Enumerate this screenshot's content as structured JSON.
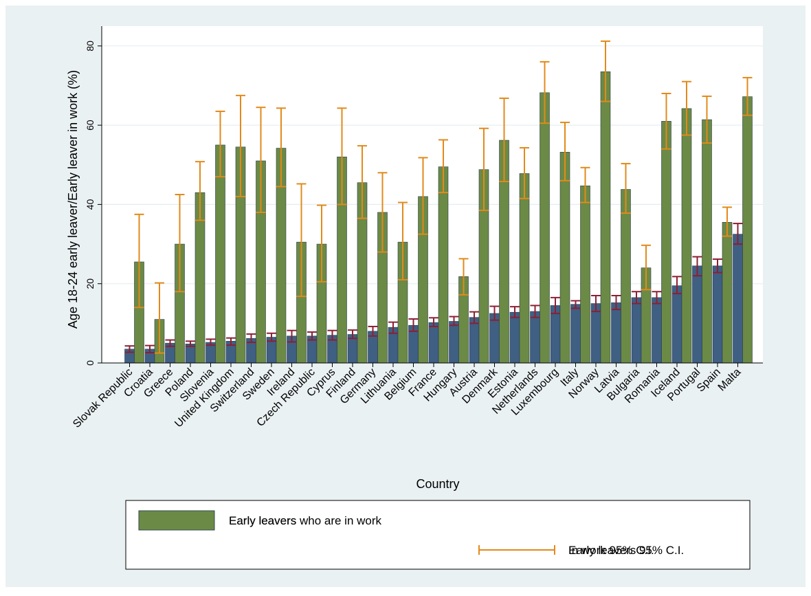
{
  "chart_data": {
    "type": "bar",
    "title": "",
    "xlabel": "Country",
    "ylabel": "Age 18-24 early leaver/Early leaver in work (%)",
    "ylim": [
      0,
      85
    ],
    "yticks": [
      0,
      20,
      40,
      60,
      80
    ],
    "grid": true,
    "legend_position": "bottom",
    "categories": [
      "Slovak Republic",
      "Croatia",
      "Greece",
      "Poland",
      "Slovenia",
      "United Kingdom",
      "Switzerland",
      "Sweden",
      "Ireland",
      "Czech Republic",
      "Cyprus",
      "Finland",
      "Germany",
      "Lithuania",
      "Belgium",
      "France",
      "Hungary",
      "Austria",
      "Denmark",
      "Estonia",
      "Netherlands",
      "Luxembourg",
      "Italy",
      "Norway",
      "Latvia",
      "Bulgaria",
      "Romania",
      "Iceland",
      "Portugal",
      "Spain",
      "Malta"
    ],
    "series": [
      {
        "name": "Early leavers",
        "color": "#3f5f83",
        "values": [
          3.5,
          3.5,
          5,
          4.8,
          5.2,
          5.5,
          6.2,
          6.5,
          6.8,
          6.8,
          7,
          7.2,
          8,
          9,
          9.5,
          10.2,
          10.5,
          11.5,
          12.5,
          12.8,
          13,
          14.5,
          14.8,
          15,
          15.2,
          16.5,
          16.5,
          19.5,
          24.5,
          24.5,
          32.5
        ],
        "ci_lower": [
          2.7,
          2.6,
          4.2,
          4.2,
          4.5,
          4.5,
          5.2,
          5.5,
          5.3,
          5.8,
          5.8,
          6.2,
          6.8,
          7.5,
          8,
          9.2,
          9.5,
          10,
          10.8,
          11.5,
          11.5,
          12.5,
          13.8,
          13,
          13.5,
          15,
          15,
          17.5,
          22,
          22.8,
          30
        ],
        "ci_upper": [
          4.3,
          4.4,
          5.8,
          5.5,
          6,
          6.3,
          7.3,
          7.5,
          8.2,
          7.8,
          8.2,
          8.3,
          9.2,
          10.3,
          11.1,
          11.4,
          11.7,
          12.9,
          14.3,
          14.2,
          14.5,
          16.5,
          15.7,
          17,
          17,
          18,
          18,
          21.8,
          26.8,
          26.2,
          35.2
        ]
      },
      {
        "name": "Early leavers who are in work",
        "color": "#6b8a45",
        "values": [
          25.5,
          11,
          30,
          43,
          55,
          54.5,
          51,
          54.2,
          30.5,
          30,
          52,
          45.5,
          38,
          30.5,
          42,
          49.5,
          21.8,
          48.8,
          56.2,
          47.8,
          68.2,
          53.2,
          44.7,
          73.5,
          43.8,
          24,
          61,
          64.2,
          61.4,
          35.5,
          67.2
        ],
        "ci_lower": [
          14,
          2.5,
          18,
          36,
          47,
          42,
          38,
          44.5,
          16.8,
          20.5,
          40,
          36.5,
          28,
          21,
          32.5,
          43,
          17.2,
          38.5,
          45.8,
          41.5,
          60.5,
          46,
          40.5,
          66,
          37.8,
          18.5,
          54,
          57.5,
          55.5,
          32,
          62.5
        ],
        "ci_upper": [
          37.5,
          20.2,
          42.5,
          50.8,
          63.5,
          67.5,
          64.5,
          64.3,
          45.2,
          39.8,
          64.3,
          54.8,
          48,
          40.5,
          51.8,
          56.3,
          26.3,
          59.2,
          66.8,
          54.3,
          76,
          60.7,
          49.3,
          81.2,
          50.3,
          29.7,
          68,
          71,
          67.3,
          39.3,
          72
        ]
      }
    ],
    "legend": [
      {
        "label": "Early leavers",
        "kind": "bar",
        "color": "#3f5f83"
      },
      {
        "label": "Early leavers who are in work",
        "kind": "bar",
        "color": "#6b8a45"
      },
      {
        "label": "Early leavers 95% C.I.",
        "kind": "ci",
        "color": "#8b2034"
      },
      {
        "label": "In work 95% C.I.",
        "kind": "ci",
        "color": "#e28a1a"
      }
    ]
  }
}
